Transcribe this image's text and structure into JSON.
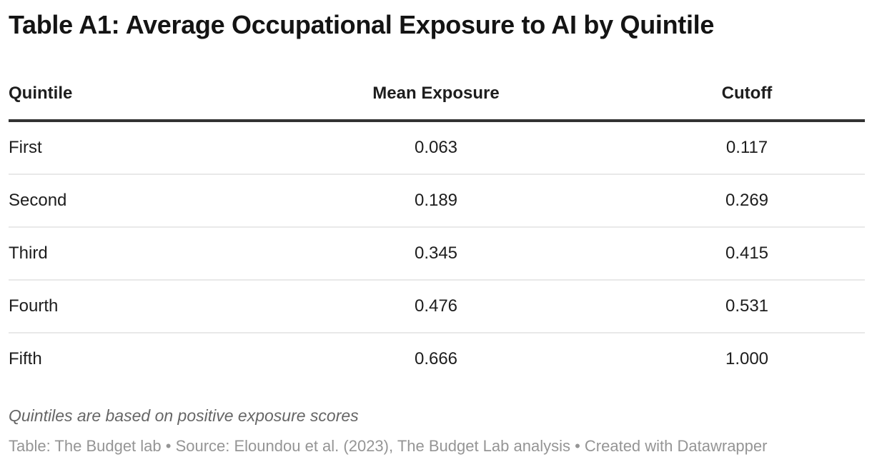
{
  "page": {
    "title": "Table A1: Average Occupational Exposure to AI by Quintile"
  },
  "table": {
    "columns": [
      {
        "label": "Quintile",
        "align": "left"
      },
      {
        "label": "Mean Exposure",
        "align": "center"
      },
      {
        "label": "Cutoff",
        "align": "center"
      }
    ],
    "rows": [
      {
        "quintile": "First",
        "mean": "0.063",
        "cutoff": "0.117"
      },
      {
        "quintile": "Second",
        "mean": "0.189",
        "cutoff": "0.269"
      },
      {
        "quintile": "Third",
        "mean": "0.345",
        "cutoff": "0.415"
      },
      {
        "quintile": "Fourth",
        "mean": "0.476",
        "cutoff": "0.531"
      },
      {
        "quintile": "Fifth",
        "mean": "0.666",
        "cutoff": "1.000"
      }
    ]
  },
  "footer": {
    "footnote": "Quintiles are based on positive exposure scores",
    "attribution": "Table: The Budget lab • Source: Eloundou et al. (2023), The Budget Lab analysis • Created with Datawrapper"
  },
  "colors": {
    "title_text": "#141414",
    "body_text": "#1d1d1d",
    "header_rule": "#333333",
    "row_separator": "#e9e9e9",
    "footnote_text": "#666666",
    "attribution_text": "#959595"
  },
  "chart_data": {
    "type": "table",
    "title": "Table A1: Average Occupational Exposure to AI by Quintile",
    "columns": [
      "Quintile",
      "Mean Exposure",
      "Cutoff"
    ],
    "rows": [
      [
        "First",
        0.063,
        0.117
      ],
      [
        "Second",
        0.189,
        0.269
      ],
      [
        "Third",
        0.345,
        0.415
      ],
      [
        "Fourth",
        0.476,
        0.531
      ],
      [
        "Fifth",
        0.666,
        1.0
      ]
    ],
    "notes": "Quintiles are based on positive exposure scores",
    "table_credit": "The Budget lab",
    "source": "Eloundou et al. (2023), The Budget Lab analysis",
    "created_with": "Datawrapper"
  }
}
